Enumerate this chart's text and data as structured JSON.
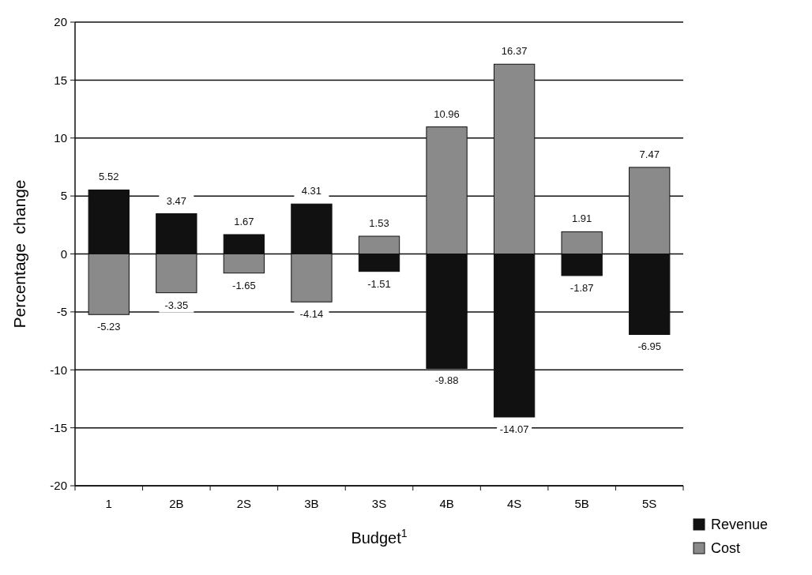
{
  "chart_data": {
    "type": "bar",
    "xlabel": "Budget$^{1}$",
    "ylabel": "Percentage  change",
    "categories": [
      "1",
      "2B",
      "2S",
      "3B",
      "3S",
      "4B",
      "4S",
      "5B",
      "5S"
    ],
    "series": [
      {
        "name": "Revenue",
        "color": "#111111",
        "values": [
          5.52,
          3.47,
          1.67,
          4.31,
          -1.51,
          -9.88,
          -14.07,
          -1.87,
          -6.95
        ]
      },
      {
        "name": "Cost",
        "color": "#8a8a8a",
        "values": [
          -5.23,
          -3.35,
          -1.65,
          -4.14,
          1.53,
          10.96,
          16.37,
          1.91,
          7.47
        ]
      }
    ],
    "stacked": true,
    "data_labels": true,
    "ylim": [
      -20,
      20
    ],
    "yticks": [
      -20,
      -15,
      -10,
      -5,
      0,
      5,
      10,
      15,
      20
    ],
    "grid": "y",
    "legend": "bottom right"
  }
}
